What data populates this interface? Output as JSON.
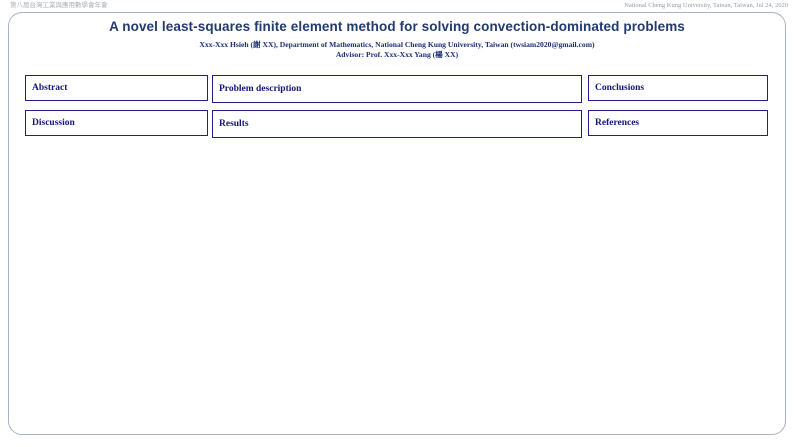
{
  "header": {
    "conference_name": "第八屆台灣工業與應用數學會年會",
    "institution_date": "National Cheng Kung University, Tainan, Taiwan, Jul 24, 2020"
  },
  "poster": {
    "title": "A novel least-squares finite element method for solving convection-dominated problems",
    "authors": "Xxx-Xxx Hsieh (謝 XX), Department of Mathematics, National Cheng Kung University, Taiwan (twsiam2020@gmail.com)",
    "advisor": "Advisor: Prof. Xxx-Xxx Yang (楊 XX)",
    "sections": [
      {
        "id": "abstract",
        "label": "Abstract"
      },
      {
        "id": "problem-description",
        "label": "Problem description"
      },
      {
        "id": "conclusions",
        "label": "Conclusions"
      },
      {
        "id": "discussion",
        "label": "Discussion"
      },
      {
        "id": "results",
        "label": "Results"
      },
      {
        "id": "references",
        "label": "References"
      }
    ]
  },
  "colors": {
    "title_navy": "#223a6e",
    "text_navy": "#14157e",
    "box_border_navy": "#20208c",
    "frame_border_gray": "#a9b1c2",
    "header_text_gray": "#939cae",
    "background": "#ffffff"
  }
}
